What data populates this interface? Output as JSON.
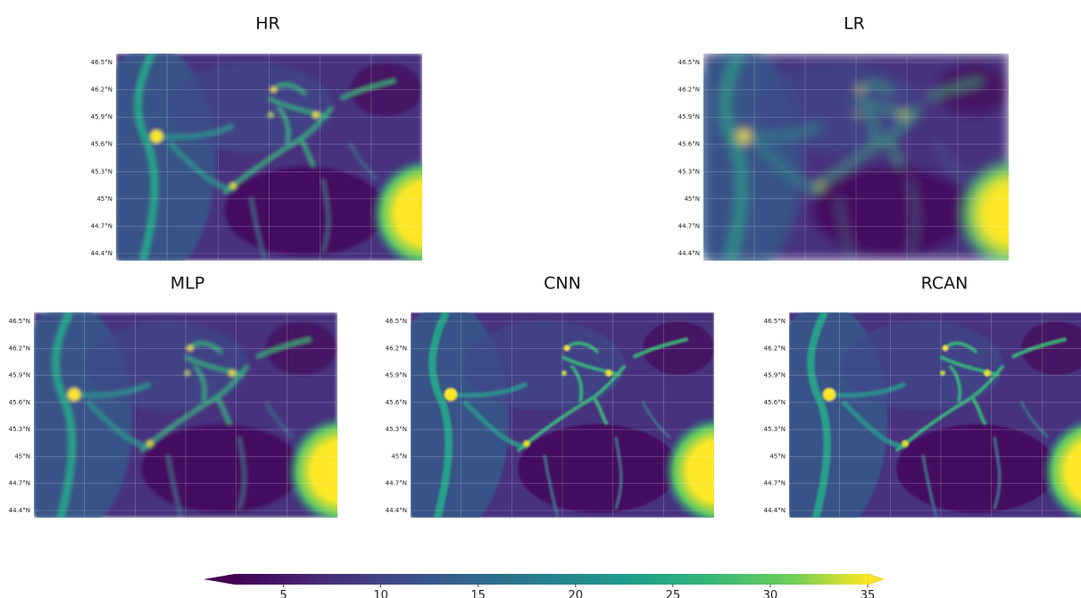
{
  "panels": [
    {
      "title": "HR"
    },
    {
      "title": "LR"
    },
    {
      "title": "MLP"
    },
    {
      "title": "CNN"
    },
    {
      "title": "RCAN"
    }
  ],
  "lat_labels": [
    "46.5°N",
    "46.2°N",
    "45.9°N",
    "45.6°N",
    "45.3°N",
    "45°N",
    "44.7°N",
    "44.4°N"
  ],
  "colorbar": {
    "lim": [
      2.5,
      35
    ],
    "ticks": [
      5,
      10,
      15,
      20,
      25,
      30,
      35
    ]
  }
}
